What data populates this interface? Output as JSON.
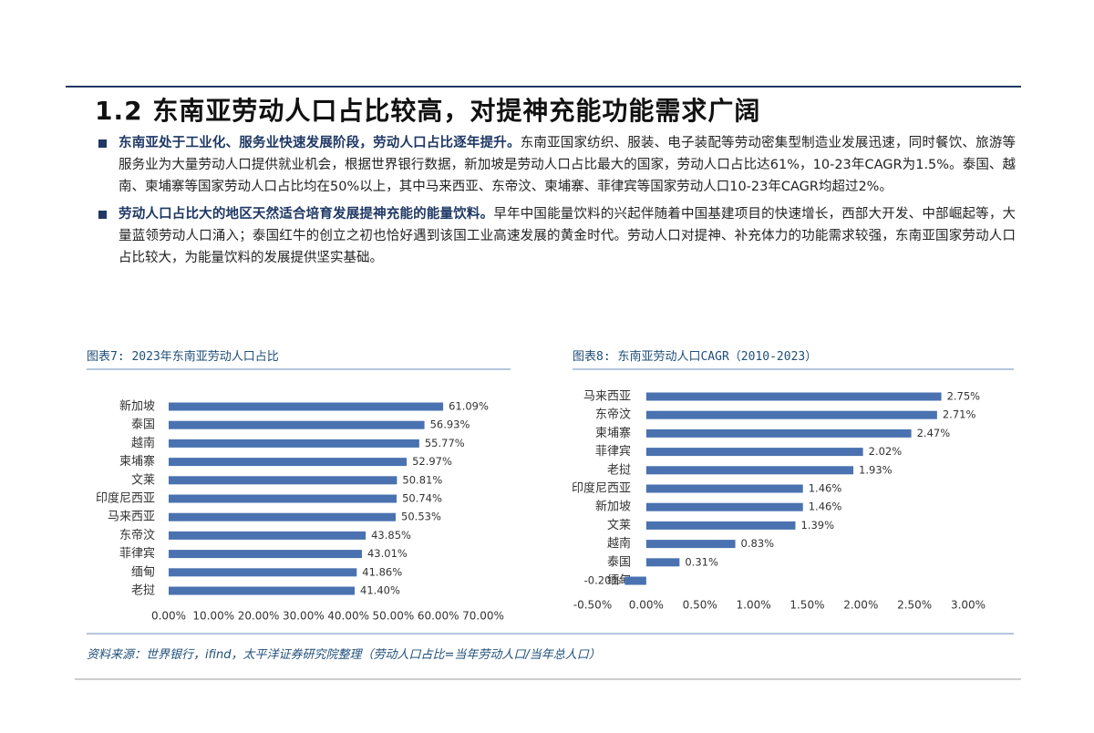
{
  "heading": "1.2 东南亚劳动人口占比较高，对提神充能功能需求广阔",
  "bullets": [
    {
      "lead": "东南亚处于工业化、服务业快速发展阶段，劳动人口占比逐年提升。",
      "text": "东南亚国家纺织、服装、电子装配等劳动密集型制造业发展迅速，同时餐饮、旅游等服务业为大量劳动人口提供就业机会，根据世界银行数据，新加坡是劳动人口占比最大的国家，劳动人口占比达61%，10-23年CAGR为1.5%。泰国、越南、柬埔寨等国家劳动人口占比均在50%以上，其中马来西亚、东帝汶、柬埔寨、菲律宾等国家劳动人口10-23年CAGR均超过2%。"
    },
    {
      "lead": "劳动人口占比大的地区天然适合培育发展提神充能的能量饮料。",
      "text": "早年中国能量饮料的兴起伴随着中国基建项目的快速增长，西部大开发、中部崛起等，大量蓝领劳动人口涌入；泰国红牛的创立之初也恰好遇到该国工业高速发展的黄金时代。劳动人口对提神、补充体力的功能需求较强，东南亚国家劳动人口占比较大，为能量饮料的发展提供坚实基础。"
    }
  ],
  "chart_data": [
    {
      "type": "bar",
      "orientation": "horizontal",
      "title": "图表7: 2023年东南亚劳动人口占比",
      "color": "#4a72b0",
      "categories": [
        "新加坡",
        "泰国",
        "越南",
        "柬埔寨",
        "文莱",
        "印度尼西亚",
        "马来西亚",
        "东帝汶",
        "菲律宾",
        "缅甸",
        "老挝"
      ],
      "values": [
        61.09,
        56.93,
        55.77,
        52.97,
        50.81,
        50.74,
        50.53,
        43.85,
        43.01,
        41.86,
        41.4
      ],
      "value_labels": [
        "61.09%",
        "56.93%",
        "55.77%",
        "52.97%",
        "50.81%",
        "50.74%",
        "50.53%",
        "43.85%",
        "43.01%",
        "41.86%",
        "41.40%"
      ],
      "xlim": [
        0,
        70
      ],
      "xticks": [
        {
          "value": 0,
          "label": "0.00%"
        },
        {
          "value": 10,
          "label": "10.00%"
        },
        {
          "value": 20,
          "label": "20.00%"
        },
        {
          "value": 30,
          "label": "30.00%"
        },
        {
          "value": 40,
          "label": "40.00%"
        },
        {
          "value": 50,
          "label": "50.00%"
        },
        {
          "value": 60,
          "label": "60.00%"
        },
        {
          "value": 70,
          "label": "70.00%"
        }
      ]
    },
    {
      "type": "bar",
      "orientation": "horizontal",
      "title": "图表8: 东南亚劳动人口CAGR（2010-2023）",
      "color": "#4a72b0",
      "categories": [
        "马来西亚",
        "东帝汶",
        "柬埔寨",
        "菲律宾",
        "老挝",
        "印度尼西亚",
        "新加坡",
        "文莱",
        "越南",
        "泰国",
        "缅甸"
      ],
      "values": [
        2.75,
        2.71,
        2.47,
        2.02,
        1.93,
        1.46,
        1.46,
        1.39,
        0.83,
        0.31,
        -0.2
      ],
      "value_labels": [
        "2.75%",
        "2.71%",
        "2.47%",
        "2.02%",
        "1.93%",
        "1.46%",
        "1.46%",
        "1.39%",
        "0.83%",
        "0.31%",
        "-0.20%"
      ],
      "xlim": [
        -0.5,
        3
      ],
      "xticks": [
        {
          "value": -0.5,
          "label": "-0.50%"
        },
        {
          "value": 0,
          "label": "0.00%"
        },
        {
          "value": 0.5,
          "label": "0.50%"
        },
        {
          "value": 1,
          "label": "1.00%"
        },
        {
          "value": 1.5,
          "label": "1.50%"
        },
        {
          "value": 2,
          "label": "2.00%"
        },
        {
          "value": 2.5,
          "label": "2.50%"
        },
        {
          "value": 3,
          "label": "3.00%"
        }
      ]
    }
  ],
  "source": "资料来源：世界银行，ifind，太平洋证券研究院整理（劳动人口占比=当年劳动人口/当年总人口）"
}
